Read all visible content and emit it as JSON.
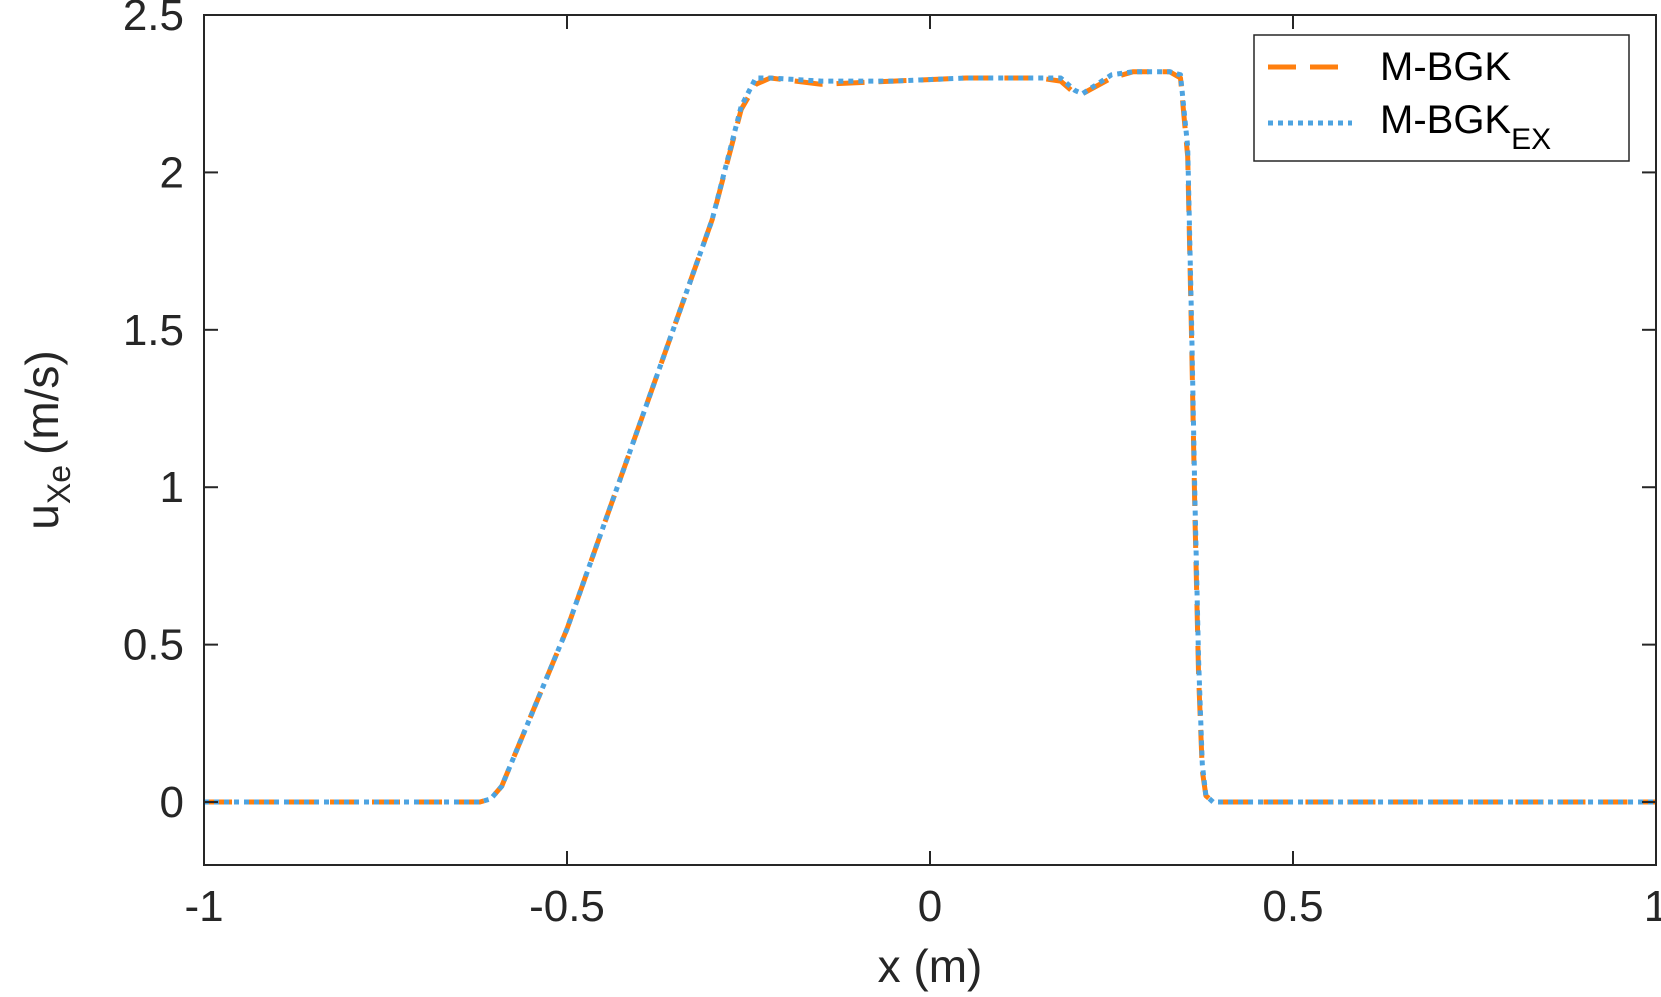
{
  "chart_data": {
    "type": "line",
    "xlabel": "x (m)",
    "ylabel": {
      "main": "u",
      "sub": "Xe",
      "unit": "(m/s)"
    },
    "xlim": [
      -1,
      1
    ],
    "ylim": [
      -0.2,
      2.5
    ],
    "xticks": [
      -1,
      -0.5,
      0,
      0.5,
      1
    ],
    "xtick_labels": [
      "-1",
      "-0.5",
      "0",
      "0.5",
      "1"
    ],
    "yticks": [
      0,
      0.5,
      1,
      1.5,
      2,
      2.5
    ],
    "ytick_labels": [
      "0",
      "0.5",
      "1",
      "1.5",
      "2",
      "2.5"
    ],
    "grid": false,
    "legend_position": "top-right",
    "series": [
      {
        "name": "M-BGK",
        "name_sub": "",
        "style": "dashed",
        "color": "#FF7F0E",
        "x": [
          -1,
          -0.62,
          -0.605,
          -0.59,
          -0.5,
          -0.4,
          -0.3,
          -0.26,
          -0.24,
          -0.22,
          -0.15,
          -0.05,
          0.05,
          0.15,
          0.18,
          0.2,
          0.21,
          0.25,
          0.28,
          0.33,
          0.345,
          0.355,
          0.36,
          0.365,
          0.37,
          0.375,
          0.38,
          0.39,
          0.5,
          1
        ],
        "y": [
          0,
          0,
          0.01,
          0.05,
          0.55,
          1.2,
          1.85,
          2.2,
          2.28,
          2.3,
          2.28,
          2.29,
          2.3,
          2.3,
          2.29,
          2.25,
          2.25,
          2.3,
          2.32,
          2.32,
          2.3,
          2.05,
          1.5,
          0.9,
          0.4,
          0.1,
          0.02,
          0,
          0,
          0
        ]
      },
      {
        "name": "M-BGK",
        "name_sub": "EX",
        "style": "dotted",
        "color": "#4DA3E0",
        "x": [
          -1,
          -0.62,
          -0.605,
          -0.59,
          -0.5,
          -0.4,
          -0.3,
          -0.26,
          -0.24,
          -0.22,
          -0.15,
          -0.05,
          0.05,
          0.15,
          0.18,
          0.2,
          0.21,
          0.25,
          0.28,
          0.33,
          0.345,
          0.355,
          0.36,
          0.365,
          0.37,
          0.375,
          0.38,
          0.39,
          0.5,
          1
        ],
        "y": [
          0,
          0,
          0.01,
          0.05,
          0.55,
          1.2,
          1.85,
          2.21,
          2.3,
          2.3,
          2.29,
          2.29,
          2.3,
          2.3,
          2.3,
          2.26,
          2.25,
          2.31,
          2.32,
          2.32,
          2.31,
          2.08,
          1.55,
          0.95,
          0.45,
          0.12,
          0.02,
          0,
          0,
          0
        ]
      }
    ]
  }
}
